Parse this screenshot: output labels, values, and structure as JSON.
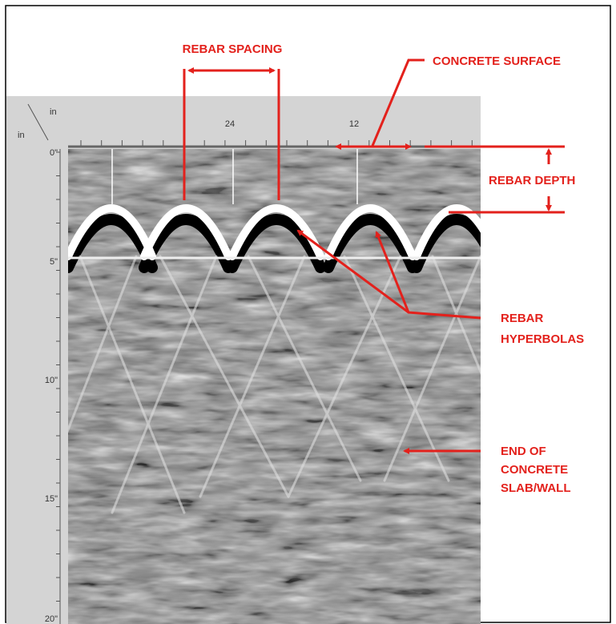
{
  "axis": {
    "corner_top": "in",
    "corner_left": "in",
    "top_labels": [
      "24",
      "12"
    ],
    "left_labels": [
      "0\"",
      "5\"",
      "10\"",
      "15\"",
      "20\""
    ]
  },
  "annotations": {
    "rebar_spacing": "REBAR SPACING",
    "concrete_surface": "CONCRETE SURFACE",
    "rebar_depth": "REBAR DEPTH",
    "rebar_hyperbolas": [
      "REBAR",
      "HYPERBOLAS"
    ],
    "end_of_concrete": [
      "END OF",
      "CONCRETE",
      "SLAB/WALL"
    ]
  }
}
